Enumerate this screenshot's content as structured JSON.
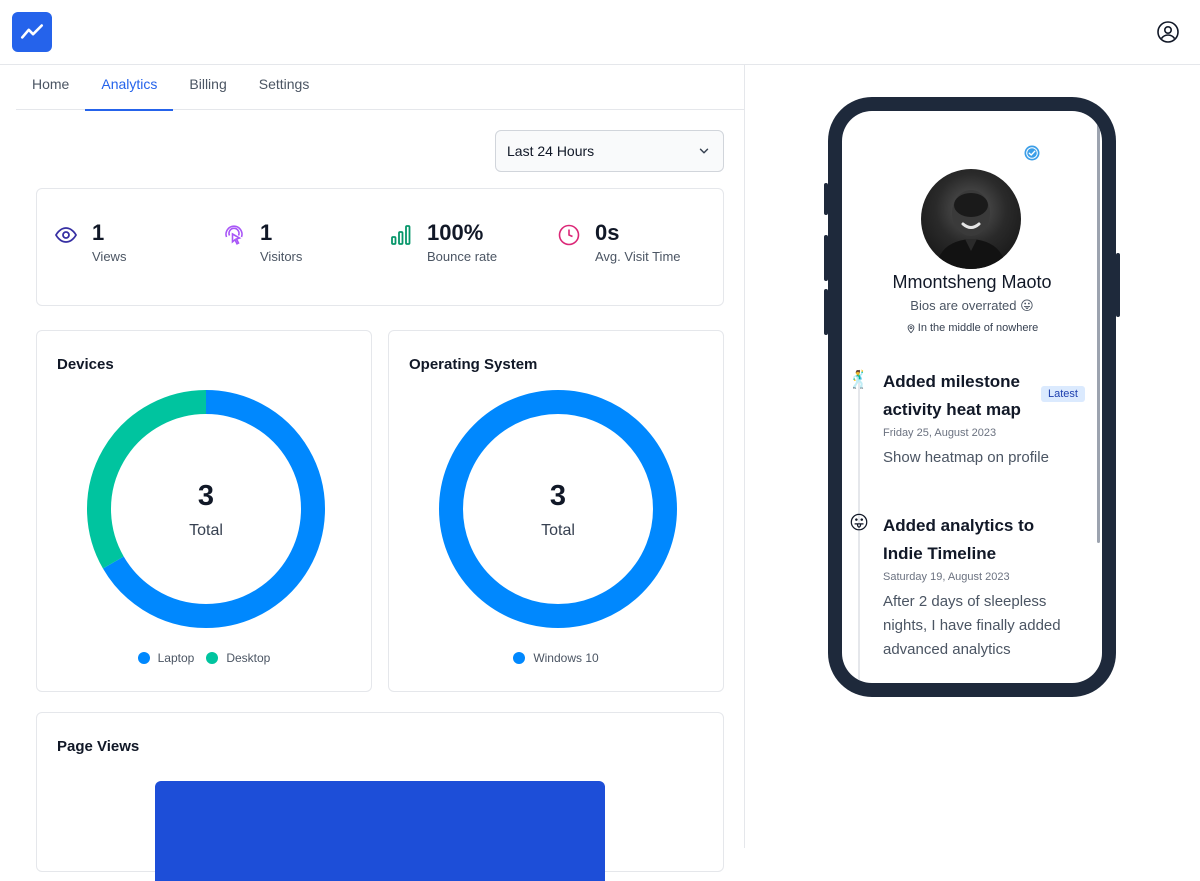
{
  "tabs": [
    "Home",
    "Analytics",
    "Billing",
    "Settings"
  ],
  "time_range": {
    "selected": "Last 24 Hours"
  },
  "stats": [
    {
      "value": "1",
      "label": "Views",
      "icon": "eye-icon"
    },
    {
      "value": "1",
      "label": "Visitors",
      "icon": "pointer-icon"
    },
    {
      "value": "100%",
      "label": "Bounce rate",
      "icon": "bar-chart-icon"
    },
    {
      "value": "0s",
      "label": "Avg. Visit Time",
      "icon": "clock-icon"
    }
  ],
  "devices": {
    "title": "Devices",
    "total": "3",
    "total_label": "Total",
    "chart_data": {
      "type": "pie",
      "categories": [
        "Laptop",
        "Desktop"
      ],
      "values": [
        2,
        1
      ],
      "colors": [
        "#0088fe",
        "#00c49f"
      ]
    }
  },
  "os": {
    "title": "Operating System",
    "total": "3",
    "total_label": "Total",
    "chart_data": {
      "type": "pie",
      "categories": [
        "Windows 10"
      ],
      "values": [
        3
      ],
      "colors": [
        "#0088fe"
      ]
    }
  },
  "page_views": {
    "title": "Page Views"
  },
  "profile": {
    "name": "Mmontsheng Maoto",
    "bio": "Bios are overrated 😛",
    "location": "In the middle of nowhere"
  },
  "timeline": [
    {
      "emoji": "🕺",
      "title": "Added milestone activity heat map",
      "badge": "Latest",
      "date": "Friday 25, August 2023",
      "description": "Show heatmap on profile"
    },
    {
      "emoji": "😛",
      "title": "Added analytics to Indie Timeline",
      "date": "Saturday 19, August 2023",
      "description": "After 2 days of sleepless nights, I have finally added advanced  analytics"
    }
  ],
  "colors": {
    "accent": "#2563eb",
    "chart_blue": "#0088fe",
    "chart_green": "#00c49f",
    "phone_frame": "#1e293b"
  }
}
